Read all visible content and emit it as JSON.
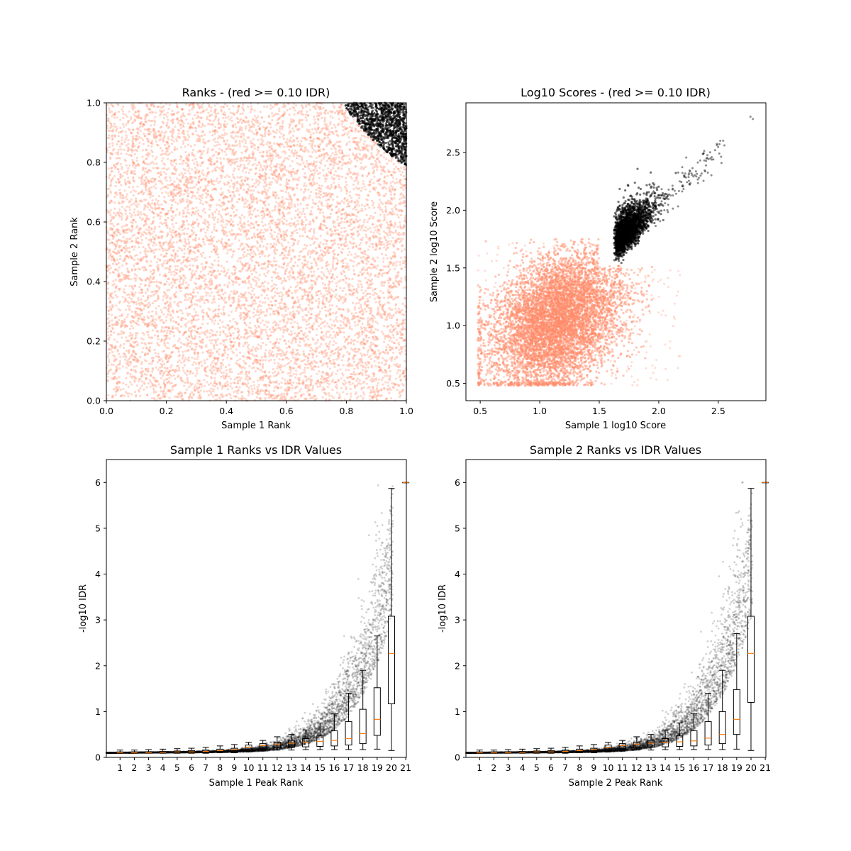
{
  "chart_data": [
    {
      "type": "scatter",
      "title": "Ranks - (red >= 0.10 IDR)",
      "xlabel": "Sample 1 Rank",
      "ylabel": "Sample 2 Rank",
      "xlim": [
        0,
        1
      ],
      "ylim": [
        0,
        1
      ],
      "xticks": [
        "0.0",
        "0.2",
        "0.4",
        "0.6",
        "0.8",
        "1.0"
      ],
      "yticks": [
        "0.0",
        "0.2",
        "0.4",
        "0.6",
        "0.8",
        "1.0"
      ],
      "series": [
        {
          "color": "#FF8C69",
          "description_region": "uniform over full square excluding top-right corner"
        },
        {
          "color": "#000000",
          "description_region": "top-right corner, x from ~0.79 to 1.0, y from ~0.79 to 1.0, bounded by an arc"
        }
      ],
      "grid": false
    },
    {
      "type": "scatter",
      "title": "Log10 Scores - (red >= 0.10 IDR)",
      "xlabel": "Sample 1 log10 Score",
      "ylabel": "Sample 2 log10 Score",
      "xlim": [
        0.38,
        2.9
      ],
      "ylim": [
        0.35,
        2.93
      ],
      "xticks": [
        "0.5",
        "1.0",
        "1.5",
        "2.0",
        "2.5"
      ],
      "yticks": [
        "0.5",
        "1.0",
        "1.5",
        "2.0",
        "2.5"
      ],
      "series": [
        {
          "color": "#FF8C69"
        },
        {
          "color": "#000000"
        }
      ],
      "grid": false
    },
    {
      "type": "box",
      "title": "Sample 1 Ranks vs IDR Values",
      "xlabel": "Sample 1 Peak Rank",
      "ylabel": "-log10 IDR",
      "ylim": [
        0,
        6.5
      ],
      "yticks": [
        "0",
        "1",
        "2",
        "3",
        "4",
        "5",
        "6"
      ],
      "categories": [
        "1",
        "2",
        "3",
        "4",
        "5",
        "6",
        "7",
        "8",
        "9",
        "10",
        "11",
        "12",
        "13",
        "14",
        "15",
        "16",
        "17",
        "18",
        "19",
        "20",
        "21"
      ],
      "medians": [
        0.1,
        0.1,
        0.1,
        0.11,
        0.12,
        0.12,
        0.13,
        0.15,
        0.17,
        0.22,
        0.26,
        0.29,
        0.31,
        0.33,
        0.35,
        0.37,
        0.41,
        0.52,
        0.83,
        2.27,
        6.0
      ],
      "q1": [
        0.1,
        0.1,
        0.1,
        0.1,
        0.1,
        0.1,
        0.11,
        0.12,
        0.13,
        0.16,
        0.19,
        0.21,
        0.22,
        0.23,
        0.24,
        0.25,
        0.27,
        0.3,
        0.48,
        1.17,
        6.0
      ],
      "q3": [
        0.12,
        0.12,
        0.12,
        0.13,
        0.14,
        0.15,
        0.16,
        0.18,
        0.2,
        0.27,
        0.3,
        0.33,
        0.37,
        0.41,
        0.47,
        0.58,
        0.78,
        1.05,
        1.52,
        3.08,
        6.0
      ],
      "whisker_low": [
        0.09,
        0.09,
        0.09,
        0.09,
        0.09,
        0.09,
        0.09,
        0.1,
        0.1,
        0.12,
        0.14,
        0.16,
        0.16,
        0.17,
        0.17,
        0.17,
        0.17,
        0.17,
        0.18,
        0.15,
        6.0
      ],
      "whisker_high": [
        0.16,
        0.16,
        0.17,
        0.18,
        0.19,
        0.2,
        0.22,
        0.25,
        0.28,
        0.33,
        0.37,
        0.45,
        0.5,
        0.6,
        0.75,
        0.95,
        1.4,
        1.9,
        2.65,
        5.87,
        6.0
      ],
      "grid": false
    },
    {
      "type": "box",
      "title": "Sample 2 Ranks vs IDR Values",
      "xlabel": "Sample 2 Peak Rank",
      "ylabel": "-log10 IDR",
      "ylim": [
        0,
        6.5
      ],
      "yticks": [
        "0",
        "1",
        "2",
        "3",
        "4",
        "5",
        "6"
      ],
      "categories": [
        "1",
        "2",
        "3",
        "4",
        "5",
        "6",
        "7",
        "8",
        "9",
        "10",
        "11",
        "12",
        "13",
        "14",
        "15",
        "16",
        "17",
        "18",
        "19",
        "20",
        "21"
      ],
      "medians": [
        0.1,
        0.1,
        0.1,
        0.11,
        0.12,
        0.12,
        0.13,
        0.15,
        0.17,
        0.22,
        0.26,
        0.29,
        0.31,
        0.33,
        0.34,
        0.36,
        0.42,
        0.5,
        0.83,
        2.27,
        6.0
      ],
      "q1": [
        0.1,
        0.1,
        0.1,
        0.1,
        0.1,
        0.1,
        0.11,
        0.12,
        0.13,
        0.16,
        0.19,
        0.21,
        0.22,
        0.23,
        0.24,
        0.25,
        0.27,
        0.3,
        0.5,
        1.2,
        6.0
      ],
      "q3": [
        0.12,
        0.12,
        0.12,
        0.13,
        0.14,
        0.15,
        0.16,
        0.18,
        0.2,
        0.27,
        0.3,
        0.33,
        0.37,
        0.41,
        0.47,
        0.58,
        0.78,
        1.0,
        1.48,
        3.08,
        6.0
      ],
      "whisker_low": [
        0.09,
        0.09,
        0.09,
        0.09,
        0.09,
        0.09,
        0.09,
        0.1,
        0.1,
        0.12,
        0.14,
        0.16,
        0.16,
        0.17,
        0.17,
        0.17,
        0.17,
        0.17,
        0.18,
        0.15,
        6.0
      ],
      "whisker_high": [
        0.16,
        0.16,
        0.17,
        0.18,
        0.19,
        0.2,
        0.22,
        0.25,
        0.28,
        0.33,
        0.37,
        0.45,
        0.5,
        0.6,
        0.75,
        0.95,
        1.4,
        1.9,
        2.7,
        5.87,
        6.0
      ],
      "grid": false
    }
  ]
}
